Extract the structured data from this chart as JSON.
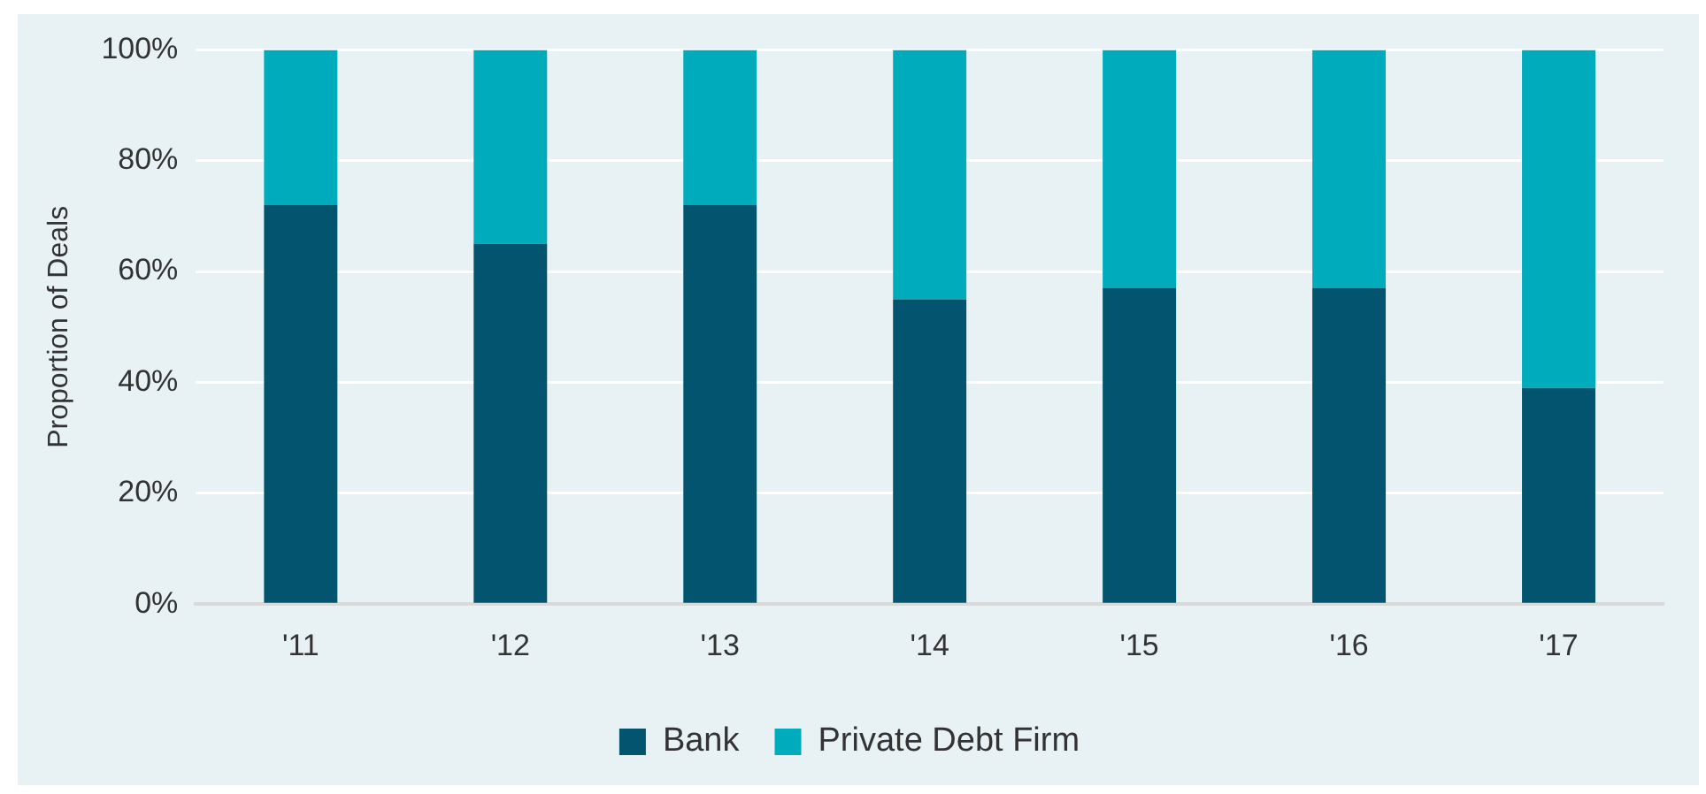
{
  "chart_data": {
    "type": "bar",
    "stacked": true,
    "ylabel": "Proportion of Deals",
    "categories": [
      "'11",
      "'12",
      "'13",
      "'14",
      "'15",
      "'16",
      "'17"
    ],
    "series": [
      {
        "name": "Bank",
        "color": "#03546e",
        "values": [
          72,
          65,
          72,
          55,
          57,
          57,
          39
        ]
      },
      {
        "name": "Private Debt Firm",
        "color": "#00acbc",
        "values": [
          28,
          35,
          28,
          45,
          43,
          43,
          61
        ]
      }
    ],
    "ylim": [
      0,
      100
    ],
    "yticks": [
      {
        "value": 0,
        "label": "0%"
      },
      {
        "value": 20,
        "label": "20%"
      },
      {
        "value": 40,
        "label": "40%"
      },
      {
        "value": 60,
        "label": "60%"
      },
      {
        "value": 80,
        "label": "80%"
      },
      {
        "value": 100,
        "label": "100%"
      }
    ],
    "grid": "y",
    "legend": "bottom"
  }
}
